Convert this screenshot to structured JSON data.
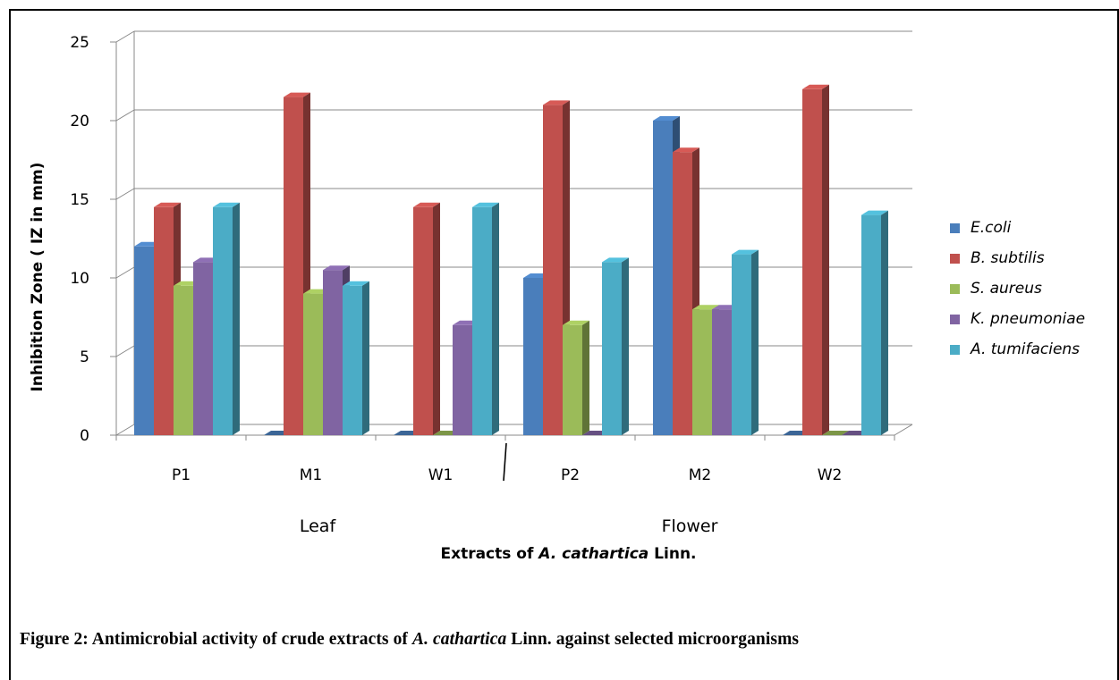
{
  "chart_data": {
    "type": "bar",
    "title": "",
    "ylabel": "Inhibition Zone ( IZ in mm)",
    "xlabel_parts": [
      "Extracts of ",
      "A. cathartica",
      " Linn."
    ],
    "ylim": [
      0,
      25
    ],
    "yticks": [
      "0",
      "5",
      "10",
      "15",
      "20",
      "25"
    ],
    "categories": [
      "P1",
      "M1",
      "W1",
      "P2",
      "M2",
      "W2"
    ],
    "groups": [
      {
        "label": "Leaf",
        "categories": [
          "P1",
          "M1",
          "W1"
        ]
      },
      {
        "label": "Flower",
        "categories": [
          "P2",
          "M2",
          "W2"
        ]
      }
    ],
    "series": [
      {
        "name": "E.coli",
        "color": "#4a7ebb",
        "values": [
          12,
          0,
          0,
          10,
          20,
          0
        ]
      },
      {
        "name": "B. subtilis",
        "color": "#c0504d",
        "values": [
          14.5,
          21.5,
          14.5,
          21,
          18,
          22
        ]
      },
      {
        "name": "S. aureus",
        "color": "#9bbb59",
        "values": [
          9.5,
          9,
          0,
          7,
          8,
          0
        ]
      },
      {
        "name": "K. pneumoniae",
        "color": "#8064a2",
        "values": [
          11,
          10.5,
          7,
          0,
          8,
          0
        ]
      },
      {
        "name": "A. tumifaciens",
        "color": "#4bacc6",
        "values": [
          14.5,
          9.5,
          14.5,
          11,
          11.5,
          14
        ]
      }
    ],
    "legend_position": "right",
    "grid": true
  },
  "caption": {
    "prefix": "Figure 2:  Antimicrobial activity of crude extracts of ",
    "italic": "A. cathartica",
    "suffix": " Linn. against selected microorganisms"
  }
}
